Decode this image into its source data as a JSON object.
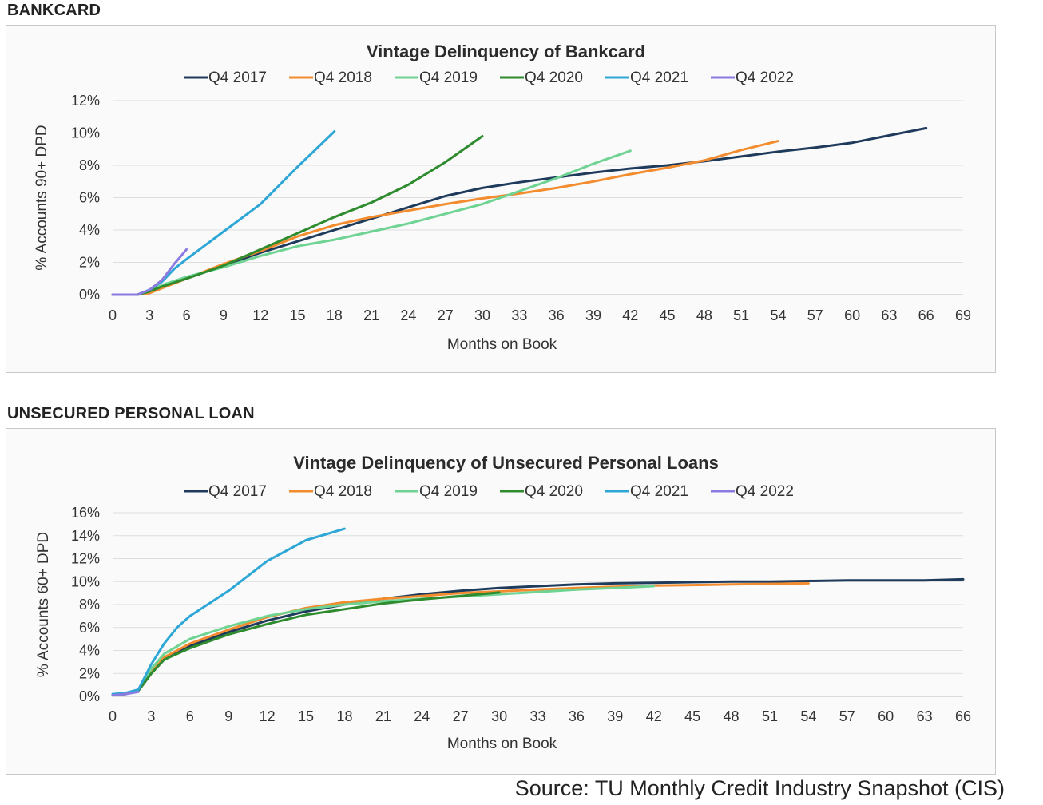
{
  "section_labels": [
    "BANKCARD",
    "UNSECURED PERSONAL LOAN"
  ],
  "source": "Source: TU Monthly Credit Industry Snapshot (CIS)",
  "colors": {
    "Q4 2017": "#1f3b5c",
    "Q4 2018": "#f28c2e",
    "Q4 2019": "#6fd393",
    "Q4 2020": "#2e8b2e",
    "Q4 2021": "#2ea7d6",
    "Q4 2022": "#8a7be0"
  },
  "chart_data": [
    {
      "type": "line",
      "title": "Vintage Delinquency of Bankcard",
      "xlabel": "Months on Book",
      "ylabel": "% Accounts 90+ DPD",
      "xlim": [
        0,
        69
      ],
      "ylim": [
        0,
        12
      ],
      "xticks": [
        0,
        3,
        6,
        9,
        12,
        15,
        18,
        21,
        24,
        27,
        30,
        33,
        36,
        39,
        42,
        45,
        48,
        51,
        54,
        57,
        60,
        63,
        66,
        69
      ],
      "yticks": [
        0,
        2,
        4,
        6,
        8,
        10,
        12
      ],
      "ytick_labels": [
        "0%",
        "2%",
        "4%",
        "6%",
        "8%",
        "10%",
        "12%"
      ],
      "grid": true,
      "legend": "top",
      "series": [
        {
          "name": "Q4 2017",
          "x": [
            0,
            2,
            3,
            4,
            6,
            9,
            12,
            15,
            18,
            21,
            24,
            27,
            30,
            33,
            36,
            39,
            42,
            45,
            48,
            51,
            54,
            57,
            60,
            63,
            66
          ],
          "y": [
            0,
            0,
            0.2,
            0.5,
            1.0,
            1.8,
            2.6,
            3.3,
            4.0,
            4.7,
            5.4,
            6.1,
            6.6,
            6.95,
            7.25,
            7.55,
            7.8,
            8.0,
            8.25,
            8.55,
            8.85,
            9.1,
            9.4,
            9.85,
            10.3
          ]
        },
        {
          "name": "Q4 2018",
          "x": [
            0,
            2,
            3,
            4,
            6,
            9,
            12,
            15,
            18,
            21,
            24,
            27,
            30,
            33,
            36,
            39,
            42,
            45,
            48,
            51,
            54
          ],
          "y": [
            0,
            0,
            0.1,
            0.4,
            1.0,
            1.9,
            2.7,
            3.6,
            4.3,
            4.8,
            5.2,
            5.6,
            5.95,
            6.25,
            6.6,
            7.0,
            7.45,
            7.85,
            8.3,
            8.95,
            9.5
          ]
        },
        {
          "name": "Q4 2019",
          "x": [
            0,
            2,
            3,
            4,
            6,
            9,
            12,
            15,
            18,
            21,
            24,
            27,
            30,
            33,
            36,
            39,
            42
          ],
          "y": [
            0,
            0,
            0.2,
            0.6,
            1.1,
            1.7,
            2.4,
            3.0,
            3.4,
            3.9,
            4.4,
            5.0,
            5.6,
            6.4,
            7.2,
            8.1,
            8.9
          ]
        },
        {
          "name": "Q4 2020",
          "x": [
            0,
            2,
            3,
            4,
            6,
            9,
            12,
            15,
            18,
            21,
            24,
            27,
            30
          ],
          "y": [
            0,
            0,
            0.2,
            0.5,
            1.0,
            1.8,
            2.8,
            3.8,
            4.8,
            5.7,
            6.8,
            8.2,
            9.8
          ]
        },
        {
          "name": "Q4 2021",
          "x": [
            0,
            2,
            3,
            4,
            5,
            6,
            9,
            12,
            15,
            18
          ],
          "y": [
            0,
            0,
            0.3,
            0.8,
            1.6,
            2.2,
            3.9,
            5.6,
            7.9,
            10.1
          ]
        },
        {
          "name": "Q4 2022",
          "x": [
            0,
            2,
            3,
            4,
            5,
            6
          ],
          "y": [
            0,
            0,
            0.3,
            0.9,
            1.9,
            2.8
          ]
        }
      ]
    },
    {
      "type": "line",
      "title": "Vintage Delinquency of Unsecured Personal Loans",
      "xlabel": "Months on Book",
      "ylabel": "% Accounts 60+ DPD",
      "xlim": [
        0,
        66
      ],
      "ylim": [
        0,
        16
      ],
      "xticks": [
        0,
        3,
        6,
        9,
        12,
        15,
        18,
        21,
        24,
        27,
        30,
        33,
        36,
        39,
        42,
        45,
        48,
        51,
        54,
        57,
        60,
        63,
        66
      ],
      "yticks": [
        0,
        2,
        4,
        6,
        8,
        10,
        12,
        14,
        16
      ],
      "ytick_labels": [
        "0%",
        "2%",
        "4%",
        "6%",
        "8%",
        "10%",
        "12%",
        "14%",
        "16%"
      ],
      "grid": true,
      "legend": "top",
      "series": [
        {
          "name": "Q4 2017",
          "x": [
            0,
            1,
            2,
            3,
            4,
            6,
            9,
            12,
            15,
            18,
            21,
            24,
            27,
            30,
            33,
            36,
            39,
            42,
            45,
            48,
            51,
            54,
            57,
            60,
            63,
            66
          ],
          "y": [
            0.1,
            0.2,
            0.5,
            2.0,
            3.2,
            4.4,
            5.6,
            6.6,
            7.4,
            8.0,
            8.5,
            8.9,
            9.2,
            9.45,
            9.6,
            9.75,
            9.85,
            9.9,
            9.95,
            10.0,
            10.0,
            10.05,
            10.1,
            10.1,
            10.1,
            10.2
          ]
        },
        {
          "name": "Q4 2018",
          "x": [
            0,
            1,
            2,
            3,
            4,
            6,
            9,
            12,
            15,
            18,
            21,
            24,
            27,
            30,
            33,
            36,
            39,
            42,
            45,
            48,
            51,
            54
          ],
          "y": [
            0.1,
            0.2,
            0.5,
            2.1,
            3.4,
            4.6,
            5.8,
            6.9,
            7.7,
            8.2,
            8.5,
            8.75,
            9.0,
            9.15,
            9.3,
            9.45,
            9.55,
            9.65,
            9.7,
            9.75,
            9.8,
            9.85
          ]
        },
        {
          "name": "Q4 2019",
          "x": [
            0,
            1,
            2,
            3,
            4,
            6,
            9,
            12,
            15,
            18,
            21,
            24,
            27,
            30,
            33,
            36,
            39,
            42
          ],
          "y": [
            0.1,
            0.2,
            0.5,
            2.4,
            3.7,
            5.0,
            6.1,
            7.0,
            7.6,
            8.0,
            8.3,
            8.5,
            8.7,
            8.9,
            9.1,
            9.3,
            9.45,
            9.6
          ]
        },
        {
          "name": "Q4 2020",
          "x": [
            0,
            1,
            2,
            3,
            4,
            6,
            9,
            12,
            15,
            18,
            21,
            24,
            27,
            30
          ],
          "y": [
            0.1,
            0.2,
            0.5,
            2.0,
            3.2,
            4.2,
            5.4,
            6.3,
            7.1,
            7.6,
            8.1,
            8.45,
            8.75,
            9.05
          ]
        },
        {
          "name": "Q4 2021",
          "x": [
            0,
            1,
            2,
            3,
            4,
            5,
            6,
            9,
            12,
            15,
            18
          ],
          "y": [
            0.2,
            0.3,
            0.6,
            2.8,
            4.6,
            6.0,
            7.0,
            9.2,
            11.8,
            13.6,
            14.6
          ]
        },
        {
          "name": "Q4 2022",
          "x": [
            0,
            1,
            2
          ],
          "y": [
            0.1,
            0.2,
            0.4
          ]
        }
      ]
    }
  ]
}
